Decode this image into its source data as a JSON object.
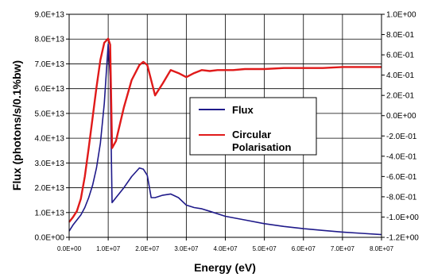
{
  "chart_data": {
    "type": "line",
    "xlabel": "Energy (eV)",
    "ylabel": "Flux (photons/s/0.1%bw)",
    "xlim": [
      0,
      80000000
    ],
    "ylim_left": [
      0,
      90000000000000
    ],
    "ylim_right": [
      -1.2,
      1.0
    ],
    "x_tick_labels": [
      "0.0E+00",
      "1.0E+07",
      "2.0E+07",
      "3.0E+07",
      "4.0E+07",
      "5.0E+07",
      "6.0E+07",
      "7.0E+07",
      "8.0E+07"
    ],
    "y_left_tick_labels": [
      "0.0E+00",
      "1.0E+13",
      "2.0E+13",
      "3.0E+13",
      "4.0E+13",
      "5.0E+13",
      "6.0E+13",
      "7.0E+13",
      "8.0E+13",
      "9.0E+13"
    ],
    "y_right_tick_labels": [
      "-1.2E+00",
      "-1.0E+00",
      "-8.0E-01",
      "-6.0E-01",
      "-4.0E-01",
      "-2.0E-01",
      "0.0E+00",
      "2.0E-01",
      "4.0E-01",
      "6.0E-01",
      "8.0E-01",
      "1.0E+00"
    ],
    "grid": true,
    "legend_position": "center-right",
    "series": [
      {
        "name": "Flux",
        "axis": "left",
        "color": "#1f1a8a",
        "x": [
          0,
          1000000,
          2000000,
          3000000,
          4000000,
          5000000,
          6000000,
          7000000,
          8000000,
          9000000,
          10000000,
          10500000,
          11000000,
          12000000,
          14000000,
          16000000,
          18000000,
          19000000,
          20000000,
          21000000,
          22000000,
          24000000,
          26000000,
          28000000,
          30000000,
          32000000,
          34000000,
          36000000,
          40000000,
          45000000,
          50000000,
          55000000,
          60000000,
          65000000,
          70000000,
          75000000,
          80000000
        ],
        "y": [
          2500000000000.0,
          5000000000000.0,
          7000000000000.0,
          9000000000000.0,
          12000000000000.0,
          16000000000000.0,
          21000000000000.0,
          28000000000000.0,
          38000000000000.0,
          54000000000000.0,
          78000000000000.0,
          65000000000000.0,
          14000000000000.0,
          16000000000000.0,
          20000000000000.0,
          24500000000000.0,
          28000000000000.0,
          27500000000000.0,
          25000000000000.0,
          16000000000000.0,
          16000000000000.0,
          17000000000000.0,
          17500000000000.0,
          16000000000000.0,
          13000000000000.0,
          12000000000000.0,
          11500000000000.0,
          10500000000000.0,
          8500000000000.0,
          7000000000000.0,
          5500000000000.0,
          4400000000000.0,
          3500000000000.0,
          2800000000000.0,
          2100000000000.0,
          1600000000000.0,
          1100000000000.0
        ]
      },
      {
        "name": "Circular Polarisation",
        "axis": "right",
        "color": "#e01a1a",
        "x": [
          0,
          1000000,
          2000000,
          3000000,
          4000000,
          5000000,
          6000000,
          7000000,
          8000000,
          9000000,
          10000000,
          10500000,
          11000000,
          12000000,
          14000000,
          16000000,
          18000000,
          19000000,
          20000000,
          21000000,
          22000000,
          24000000,
          26000000,
          28000000,
          30000000,
          32000000,
          34000000,
          36000000,
          38000000,
          40000000,
          42000000,
          45000000,
          50000000,
          55000000,
          60000000,
          65000000,
          70000000,
          75000000,
          80000000
        ],
        "y": [
          -1.05,
          -1.0,
          -0.94,
          -0.82,
          -0.6,
          -0.32,
          -0.02,
          0.28,
          0.55,
          0.72,
          0.76,
          0.7,
          -0.32,
          -0.25,
          0.08,
          0.35,
          0.5,
          0.53,
          0.5,
          0.35,
          0.2,
          0.32,
          0.45,
          0.42,
          0.38,
          0.42,
          0.45,
          0.44,
          0.45,
          0.45,
          0.45,
          0.46,
          0.46,
          0.47,
          0.47,
          0.47,
          0.48,
          0.48,
          0.48
        ]
      }
    ]
  }
}
